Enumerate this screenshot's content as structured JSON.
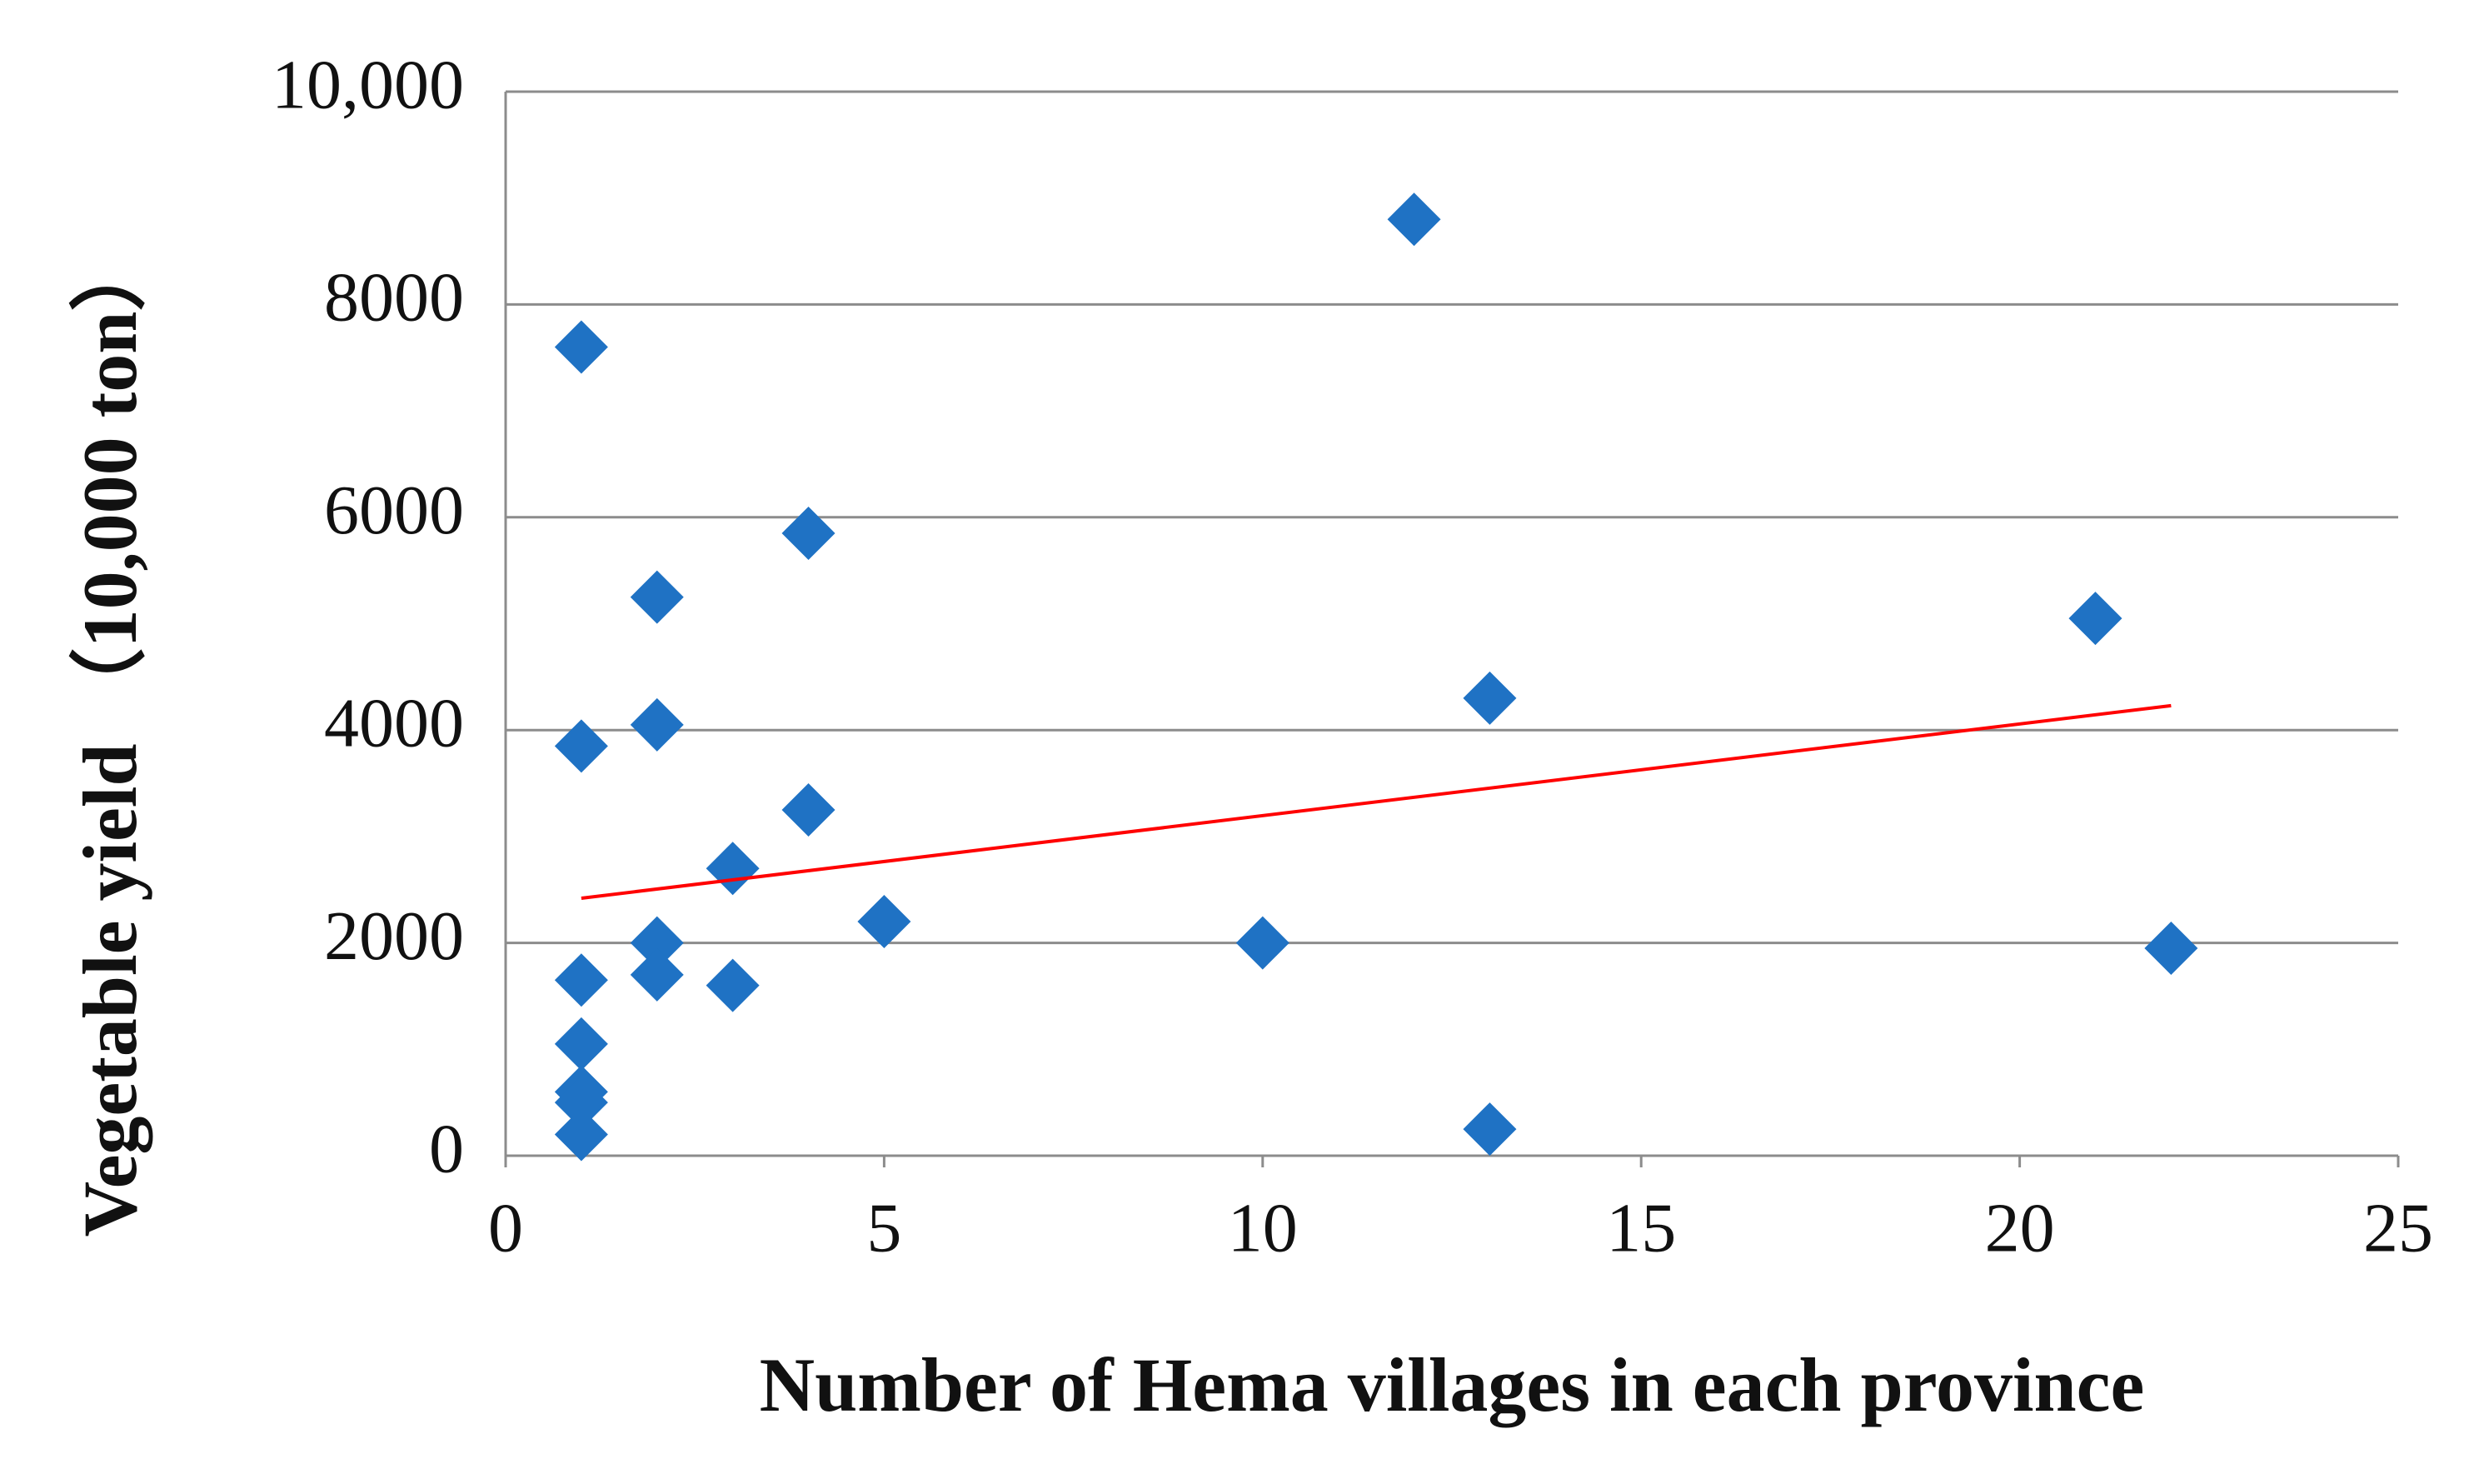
{
  "chart_data": {
    "type": "scatter",
    "xlabel": "Number of Hema villages in each province",
    "ylabel": "Vegetable yield （10,000 ton）",
    "x": [
      1,
      1,
      1,
      1,
      1,
      1,
      1,
      2,
      2,
      2,
      2,
      3,
      3,
      4,
      4,
      5,
      10,
      12,
      13,
      13,
      21,
      22
    ],
    "values": [
      7600,
      3850,
      1650,
      1050,
      600,
      500,
      200,
      5250,
      4050,
      2000,
      1700,
      2700,
      1600,
      5850,
      3250,
      2200,
      2000,
      8800,
      4300,
      250,
      5050,
      1950
    ],
    "color": "#1f72c4",
    "trendline": {
      "x": [
        1,
        22
      ],
      "values": [
        2420,
        4230
      ],
      "color": "#ff0000"
    },
    "xlim": [
      0,
      25
    ],
    "xticks": [
      0,
      5,
      10,
      15,
      20,
      25
    ],
    "ylim": [
      0,
      10000
    ],
    "yticks": [
      0,
      2000,
      4000,
      6000,
      8000,
      {
        "value": 10000,
        "label": "10,000"
      }
    ],
    "grid": true
  }
}
